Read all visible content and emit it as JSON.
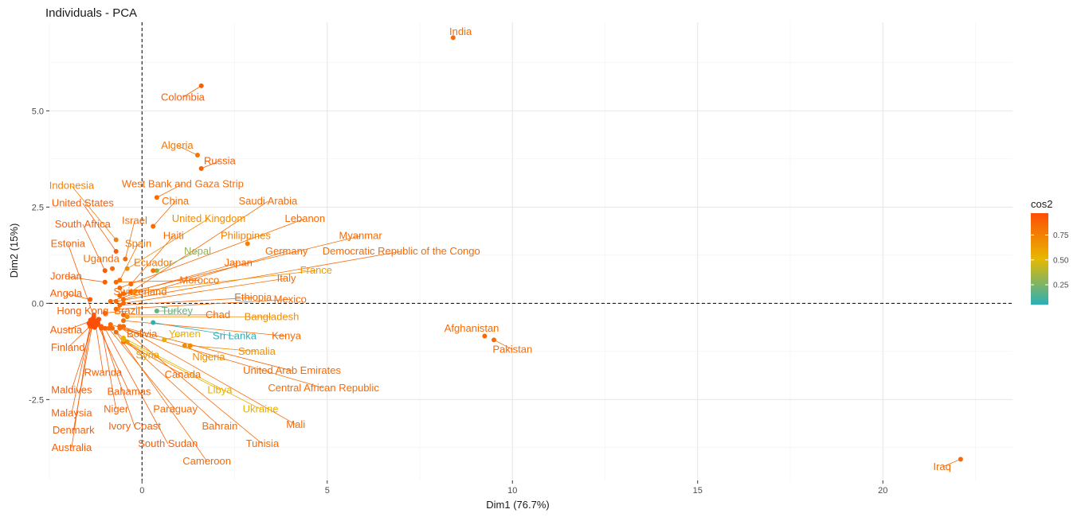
{
  "chart_data": {
    "type": "scatter",
    "title": "Individuals - PCA",
    "xlabel": "Dim1 (76.7%)",
    "ylabel": "Dim2 (15%)",
    "xlim": [
      -2.5,
      23.5
    ],
    "ylim": [
      -4.6,
      7.3
    ],
    "xticks": [
      0,
      5,
      10,
      15,
      20
    ],
    "yticks": [
      -2.5,
      0.0,
      2.5,
      5.0
    ],
    "ytick_labels": [
      "-2.5",
      "0.0",
      "2.5",
      "5.0"
    ],
    "grid": true,
    "reference_lines": {
      "x": 0,
      "y": 0,
      "style": "dashed"
    },
    "legend": {
      "title": "cos2",
      "position": "right",
      "ticks": [
        0.25,
        0.5,
        0.75
      ],
      "tick_labels": [
        "0.25",
        "0.50",
        "0.75"
      ],
      "range": [
        0.05,
        0.97
      ],
      "colors": [
        "#2ab0b8",
        "#e7b800",
        "#fc4e07"
      ]
    },
    "points": [
      {
        "name": "India",
        "x": 8.4,
        "y": 6.9,
        "cos2": 0.85,
        "lx": 8.6,
        "ly": 7.05
      },
      {
        "name": "Colombia",
        "x": 1.6,
        "y": 5.65,
        "cos2": 0.9,
        "lx": 1.1,
        "ly": 5.35
      },
      {
        "name": "Algeria",
        "x": 1.5,
        "y": 3.85,
        "cos2": 0.8,
        "lx": 0.95,
        "ly": 4.1
      },
      {
        "name": "Russia",
        "x": 1.6,
        "y": 3.5,
        "cos2": 0.9,
        "lx": 2.1,
        "ly": 3.7
      },
      {
        "name": "West Bank and Gaza Strip",
        "x": 0.4,
        "y": 2.75,
        "cos2": 0.85,
        "lx": 1.1,
        "ly": 3.1
      },
      {
        "name": "China",
        "x": 0.3,
        "y": 2.0,
        "cos2": 0.85,
        "lx": 0.9,
        "ly": 2.65
      },
      {
        "name": "Indonesia",
        "x": -0.7,
        "y": 1.65,
        "cos2": 0.75,
        "lx": -1.9,
        "ly": 3.05
      },
      {
        "name": "United States",
        "x": -0.7,
        "y": 1.35,
        "cos2": 0.9,
        "lx": -1.6,
        "ly": 2.6
      },
      {
        "name": "Saudi Arabia",
        "x": -0.3,
        "y": 0.3,
        "cos2": 0.85,
        "lx": 3.4,
        "ly": 2.65
      },
      {
        "name": "Israel",
        "x": -0.45,
        "y": 1.15,
        "cos2": 0.85,
        "lx": -0.2,
        "ly": 2.15
      },
      {
        "name": "United Kingdom",
        "x": -0.4,
        "y": 0.9,
        "cos2": 0.7,
        "lx": 1.8,
        "ly": 2.2
      },
      {
        "name": "South Africa",
        "x": -1.0,
        "y": 0.85,
        "cos2": 0.9,
        "lx": -1.6,
        "ly": 2.05
      },
      {
        "name": "Lebanon",
        "x": -0.6,
        "y": 0.4,
        "cos2": 0.85,
        "lx": 4.4,
        "ly": 2.2
      },
      {
        "name": "Haiti",
        "x": -0.3,
        "y": 0.5,
        "cos2": 0.85,
        "lx": 0.85,
        "ly": 1.75
      },
      {
        "name": "Spain",
        "x": -0.6,
        "y": 0.6,
        "cos2": 0.8,
        "lx": -0.1,
        "ly": 1.55
      },
      {
        "name": "Philippines",
        "x": 2.85,
        "y": 1.55,
        "cos2": 0.75,
        "lx": 2.8,
        "ly": 1.75
      },
      {
        "name": "Myanmar",
        "x": -0.5,
        "y": 0.25,
        "cos2": 0.85,
        "lx": 5.9,
        "ly": 1.75
      },
      {
        "name": "Estonia",
        "x": -1.3,
        "y": -0.35,
        "cos2": 0.9,
        "lx": -2.0,
        "ly": 1.55
      },
      {
        "name": "Nepal",
        "x": 0.4,
        "y": 0.85,
        "cos2": 0.3,
        "lx": 1.5,
        "ly": 1.35
      },
      {
        "name": "Germany",
        "x": -0.5,
        "y": 0.1,
        "cos2": 0.85,
        "lx": 3.9,
        "ly": 1.35
      },
      {
        "name": "Democratic Republic of the Congo",
        "x": -0.7,
        "y": 0.05,
        "cos2": 0.85,
        "lx": 7.0,
        "ly": 1.35
      },
      {
        "name": "Uganda",
        "x": -0.8,
        "y": 0.9,
        "cos2": 0.85,
        "lx": -1.1,
        "ly": 1.15
      },
      {
        "name": "Ecuador",
        "x": 0.3,
        "y": 0.85,
        "cos2": 0.8,
        "lx": 0.3,
        "ly": 1.05
      },
      {
        "name": "Japan",
        "x": -0.6,
        "y": 0.2,
        "cos2": 0.85,
        "lx": 2.6,
        "ly": 1.05
      },
      {
        "name": "France",
        "x": -0.2,
        "y": 0.3,
        "cos2": 0.65,
        "lx": 4.7,
        "ly": 0.85
      },
      {
        "name": "Jordan",
        "x": -1.0,
        "y": 0.55,
        "cos2": 0.9,
        "lx": -2.05,
        "ly": 0.7
      },
      {
        "name": "Morocco",
        "x": -0.7,
        "y": 0.55,
        "cos2": 0.85,
        "lx": 1.55,
        "ly": 0.6
      },
      {
        "name": "Italy",
        "x": -0.5,
        "y": 0.0,
        "cos2": 0.85,
        "lx": 3.9,
        "ly": 0.65
      },
      {
        "name": "Angola",
        "x": -1.4,
        "y": 0.1,
        "cos2": 0.9,
        "lx": -2.05,
        "ly": 0.25
      },
      {
        "name": "Switzerland",
        "x": -0.85,
        "y": 0.05,
        "cos2": 0.85,
        "lx": -0.05,
        "ly": 0.3
      },
      {
        "name": "Ethiopia",
        "x": -0.6,
        "y": -0.05,
        "cos2": 0.85,
        "lx": 3.0,
        "ly": 0.15
      },
      {
        "name": "Mexico",
        "x": -0.7,
        "y": -0.15,
        "cos2": 0.85,
        "lx": 4.0,
        "ly": 0.1
      },
      {
        "name": "Hong Kong",
        "x": -1.3,
        "y": -0.3,
        "cos2": 0.9,
        "lx": -1.6,
        "ly": -0.2
      },
      {
        "name": "Brazil",
        "x": -1.0,
        "y": -0.25,
        "cos2": 0.85,
        "lx": -0.4,
        "ly": -0.2
      },
      {
        "name": "Turkey",
        "x": 0.4,
        "y": -0.2,
        "cos2": 0.2,
        "lx": 0.95,
        "ly": -0.2
      },
      {
        "name": "Chad",
        "x": -0.5,
        "y": -0.3,
        "cos2": 0.85,
        "lx": 2.05,
        "ly": -0.3
      },
      {
        "name": "Bangladesh",
        "x": -0.4,
        "y": -0.35,
        "cos2": 0.7,
        "lx": 3.5,
        "ly": -0.35
      },
      {
        "name": "Austria",
        "x": -1.35,
        "y": -0.45,
        "cos2": 0.9,
        "lx": -2.05,
        "ly": -0.7
      },
      {
        "name": "Bolivia",
        "x": -0.85,
        "y": -0.55,
        "cos2": 0.85,
        "lx": 0.0,
        "ly": -0.8
      },
      {
        "name": "Yemen",
        "x": 0.6,
        "y": -0.95,
        "cos2": 0.55,
        "lx": 1.15,
        "ly": -0.8
      },
      {
        "name": "Sri Lanka",
        "x": 0.3,
        "y": -0.5,
        "cos2": 0.05,
        "lx": 2.5,
        "ly": -0.85
      },
      {
        "name": "Kenya",
        "x": -0.5,
        "y": -0.45,
        "cos2": 0.85,
        "lx": 3.9,
        "ly": -0.85
      },
      {
        "name": "Afghanistan",
        "x": 9.25,
        "y": -0.85,
        "cos2": 0.85,
        "lx": 8.9,
        "ly": -0.65
      },
      {
        "name": "Pakistan",
        "x": 9.5,
        "y": -0.95,
        "cos2": 0.85,
        "lx": 10.0,
        "ly": -1.2
      },
      {
        "name": "Finland",
        "x": -1.3,
        "y": -0.5,
        "cos2": 0.9,
        "lx": -2.0,
        "ly": -1.15
      },
      {
        "name": "Syria",
        "x": -0.4,
        "y": -1.0,
        "cos2": 0.65,
        "lx": 0.15,
        "ly": -1.35
      },
      {
        "name": "Somalia",
        "x": 1.3,
        "y": -1.1,
        "cos2": 0.7,
        "lx": 3.1,
        "ly": -1.25
      },
      {
        "name": "Nigeria",
        "x": 1.15,
        "y": -1.1,
        "cos2": 0.7,
        "lx": 1.8,
        "ly": -1.4
      },
      {
        "name": "Rwanda",
        "x": -1.25,
        "y": -0.55,
        "cos2": 0.9,
        "lx": -1.05,
        "ly": -1.8
      },
      {
        "name": "Canada",
        "x": -0.5,
        "y": -1.0,
        "cos2": 0.85,
        "lx": 1.1,
        "ly": -1.85
      },
      {
        "name": "United Arab Emirates",
        "x": -0.6,
        "y": -0.6,
        "cos2": 0.85,
        "lx": 4.05,
        "ly": -1.75
      },
      {
        "name": "Maldives",
        "x": -1.35,
        "y": -0.6,
        "cos2": 0.9,
        "lx": -1.9,
        "ly": -2.25
      },
      {
        "name": "Bahamas",
        "x": -1.2,
        "y": -0.55,
        "cos2": 0.9,
        "lx": -0.35,
        "ly": -2.3
      },
      {
        "name": "Libya",
        "x": -0.5,
        "y": -0.95,
        "cos2": 0.55,
        "lx": 2.1,
        "ly": -2.25
      },
      {
        "name": "Central African Republic",
        "x": -0.6,
        "y": -0.65,
        "cos2": 0.85,
        "lx": 4.9,
        "ly": -2.2
      },
      {
        "name": "Malaysia",
        "x": -1.4,
        "y": -0.6,
        "cos2": 0.9,
        "lx": -1.9,
        "ly": -2.85
      },
      {
        "name": "Niger",
        "x": -1.1,
        "y": -0.6,
        "cos2": 0.9,
        "lx": -0.7,
        "ly": -2.75
      },
      {
        "name": "Paraguay",
        "x": -0.9,
        "y": -0.65,
        "cos2": 0.85,
        "lx": 0.9,
        "ly": -2.75
      },
      {
        "name": "Ukraine",
        "x": -0.5,
        "y": -0.9,
        "cos2": 0.55,
        "lx": 3.2,
        "ly": -2.75
      },
      {
        "name": "Denmark",
        "x": -1.35,
        "y": -0.6,
        "cos2": 0.9,
        "lx": -1.85,
        "ly": -3.3
      },
      {
        "name": "Ivory Coast",
        "x": -1.1,
        "y": -0.65,
        "cos2": 0.9,
        "lx": -0.2,
        "ly": -3.2
      },
      {
        "name": "Bahrain",
        "x": -0.8,
        "y": -0.65,
        "cos2": 0.85,
        "lx": 2.1,
        "ly": -3.2
      },
      {
        "name": "Mali",
        "x": -0.5,
        "y": -0.6,
        "cos2": 0.85,
        "lx": 4.15,
        "ly": -3.15
      },
      {
        "name": "Australia",
        "x": -1.4,
        "y": -0.6,
        "cos2": 0.9,
        "lx": -1.9,
        "ly": -3.75
      },
      {
        "name": "South Sudan",
        "x": -1.0,
        "y": -0.65,
        "cos2": 0.9,
        "lx": 0.7,
        "ly": -3.65
      },
      {
        "name": "Tunisia",
        "x": -0.6,
        "y": -0.6,
        "cos2": 0.85,
        "lx": 3.25,
        "ly": -3.65
      },
      {
        "name": "Cameroon",
        "x": -0.7,
        "y": -0.75,
        "cos2": 0.85,
        "lx": 1.75,
        "ly": -4.1
      },
      {
        "name": "Iraq",
        "x": 22.1,
        "y": -4.05,
        "cos2": 0.85,
        "lx": 21.6,
        "ly": -4.25
      }
    ],
    "cluster": {
      "x": -1.3,
      "y": -0.5,
      "cos2": 0.97
    }
  }
}
